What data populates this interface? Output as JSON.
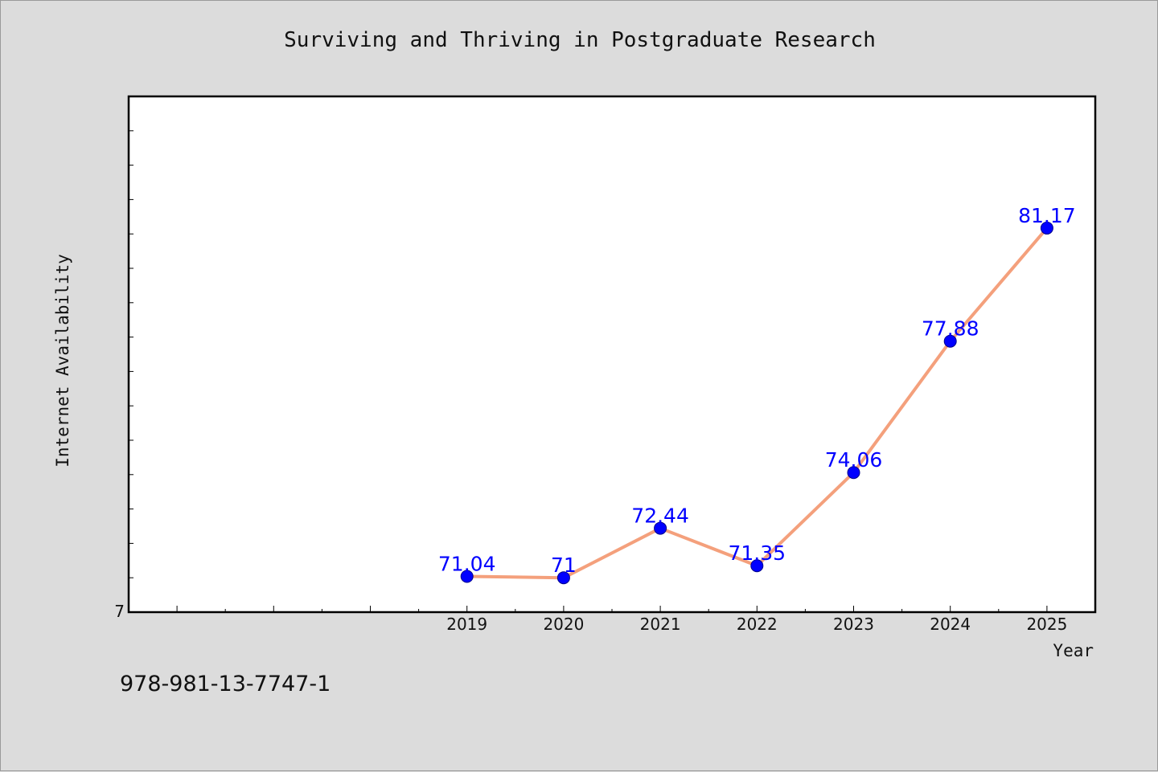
{
  "title": "Surviving and Thriving in Postgraduate Research",
  "footer_text": "978-981-13-7747-1",
  "colors": {
    "background": "#dcdcdc",
    "plot_bg": "#ffffff",
    "line": "#f4a07c",
    "marker": "#0000ff",
    "label": "#0000ff"
  },
  "chart_data": {
    "type": "line",
    "title": "Surviving and Thriving in Postgraduate Research",
    "xlabel": "Year",
    "ylabel": "Internet Availability",
    "categories": [
      "2019",
      "2020",
      "2021",
      "2022",
      "2023",
      "2024",
      "2025"
    ],
    "x": [
      2019,
      2020,
      2021,
      2022,
      2023,
      2024,
      2025
    ],
    "values": [
      71.04,
      71,
      72.44,
      71.35,
      74.06,
      77.88,
      81.17
    ],
    "data_labels": [
      "71.04",
      "71",
      "72.44",
      "71.35",
      "74.06",
      "77.88",
      "81.17"
    ],
    "xlim": [
      2015.5,
      2025.5
    ],
    "ylim": [
      70,
      85
    ],
    "y_tick_labels": [
      "7"
    ],
    "grid": false,
    "legend": "none"
  }
}
